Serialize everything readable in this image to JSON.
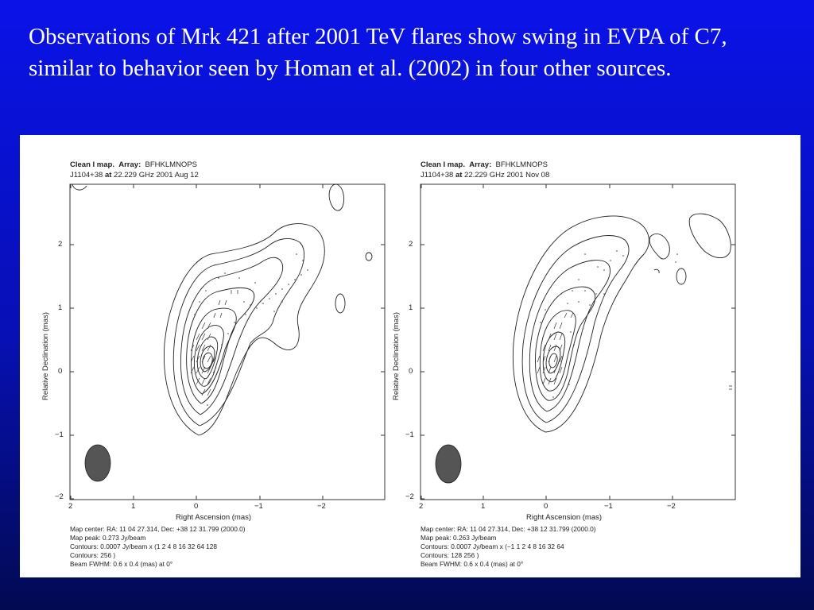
{
  "slide": {
    "title": "Observations of Mrk 421 after 2001 TeV flares show swing in EVPA of C7, similar to behavior seen by Homan et al. (2002) in four other sources."
  },
  "plots": [
    {
      "header_label": "Clean I map.",
      "array_label": "Array:",
      "array_value": "BFHKLMNOPS",
      "source": "J1104+38",
      "at_label": "at",
      "freq_date": "22.229 GHz 2001 Aug 12",
      "x_axis_label": "Right Ascension   (mas)",
      "y_axis_label": "Relative Declination   (mas)",
      "x_ticks": [
        "2",
        "1",
        "0",
        "−1",
        "−2"
      ],
      "y_ticks": [
        "2",
        "1",
        "0",
        "−1",
        "−2"
      ],
      "footer": [
        "Map center:   RA: 11 04 27.314,   Dec: +38 12 31.799 (2000.0)",
        "Map peak: 0.273 Jy/beam",
        "Contours: 0.0007 Jy/beam x (1 2 4 8 16 32 64 128",
        "Contours: 256 )",
        "Beam FWHM: 0.6 x 0.4 (mas) at 0°"
      ]
    },
    {
      "header_label": "Clean I map.",
      "array_label": "Array:",
      "array_value": "BFHKLMNOPS",
      "source": "J1104+38",
      "at_label": "at",
      "freq_date": "22.229 GHz 2001 Nov 08",
      "x_axis_label": "Right Ascension   (mas)",
      "y_axis_label": "Relative Declination   (mas)",
      "x_ticks": [
        "2",
        "1",
        "0",
        "−1",
        "−2"
      ],
      "y_ticks": [
        "2",
        "1",
        "0",
        "−1",
        "−2"
      ],
      "footer": [
        "Map center:   RA: 11 04 27.314,   Dec: +38 12 31.799 (2000.0)",
        "Map peak: 0.263 Jy/beam",
        "Contours: 0.0007 Jy/beam x (−1 1 2 4 8 16 32 64",
        "Contours: 128 256 )",
        "Beam FWHM: 0.6 x 0.4 (mas) at 0°"
      ]
    }
  ],
  "colors": {
    "background_top": "#0a12e8",
    "background_bottom": "#020a52",
    "title_text": "#ffffff",
    "beam_fill": "#555555"
  }
}
